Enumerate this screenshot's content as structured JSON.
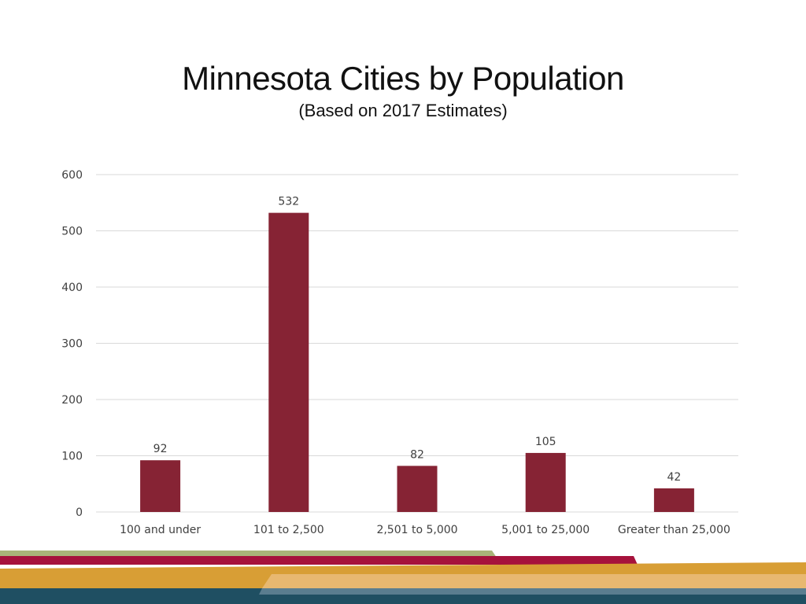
{
  "slide": {
    "title": "Minnesota Cities by Population",
    "subtitle": "(Based on 2017 Estimates)"
  },
  "colors": {
    "bar": "#862334",
    "gridline": "#d9d9d9",
    "footer_green": "#a9b479",
    "footer_maroon": "#a6123c",
    "footer_gold": "#d89e35",
    "footer_light_gold": "#e8b870",
    "footer_teal": "#1f4f62",
    "footer_slate": "#5a7d8f"
  },
  "chart_data": {
    "type": "bar",
    "title": "Minnesota Cities by Population",
    "subtitle": "(Based on 2017 Estimates)",
    "categories": [
      "100 and under",
      "101 to 2,500",
      "2,501 to 5,000",
      "5,001 to 25,000",
      "Greater than 25,000"
    ],
    "values": [
      92,
      532,
      82,
      105,
      42
    ],
    "data_labels": [
      "92",
      "532",
      "82",
      "105",
      "42"
    ],
    "ylim": [
      0,
      600
    ],
    "yticks": [
      "0",
      "100",
      "200",
      "300",
      "400",
      "500",
      "600"
    ],
    "xlabel": "",
    "ylabel": "",
    "grid": true,
    "legend": "none"
  }
}
